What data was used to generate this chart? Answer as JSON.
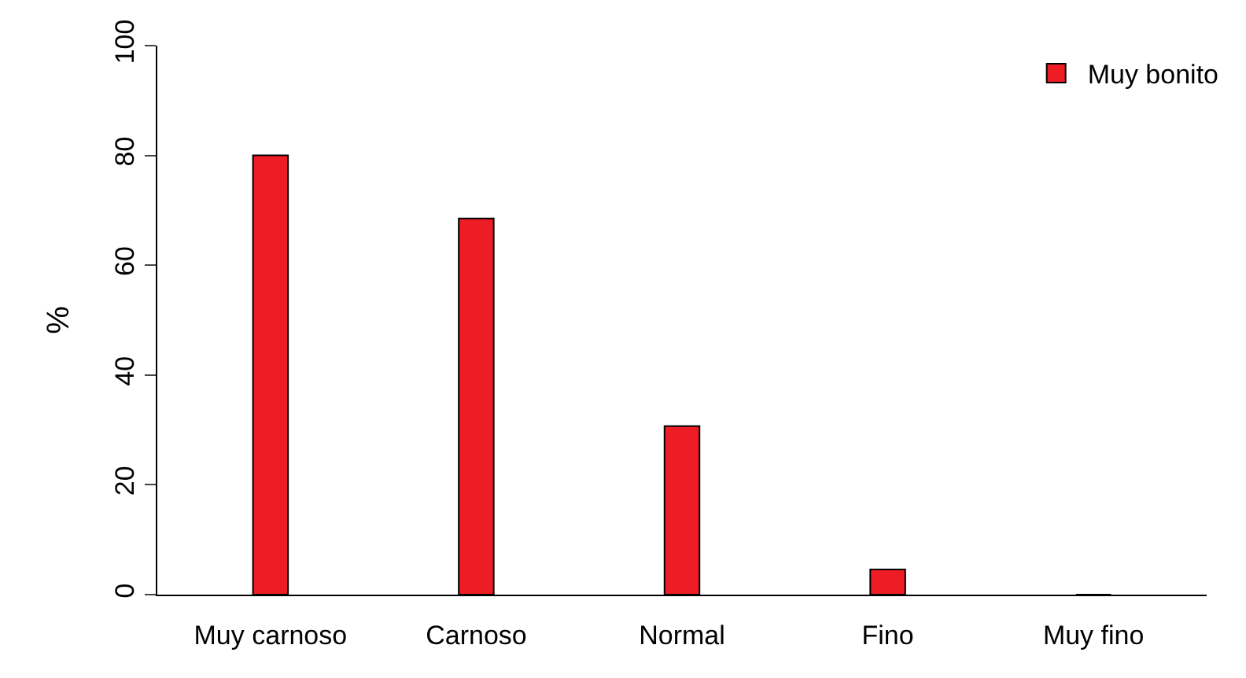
{
  "chart_data": {
    "type": "bar",
    "ylabel": "%",
    "categories": [
      "Muy carnoso",
      "Carnoso",
      "Normal",
      "Fino",
      "Muy fino"
    ],
    "series": [
      {
        "name": "Muy bonito",
        "color": "#ee1c25",
        "values": [
          80,
          68.5,
          30.7,
          4.6,
          0
        ]
      }
    ],
    "ylim": [
      0,
      100
    ],
    "yticks": [
      0,
      20,
      40,
      60,
      80,
      100
    ],
    "grid": false,
    "legend": "top right"
  }
}
